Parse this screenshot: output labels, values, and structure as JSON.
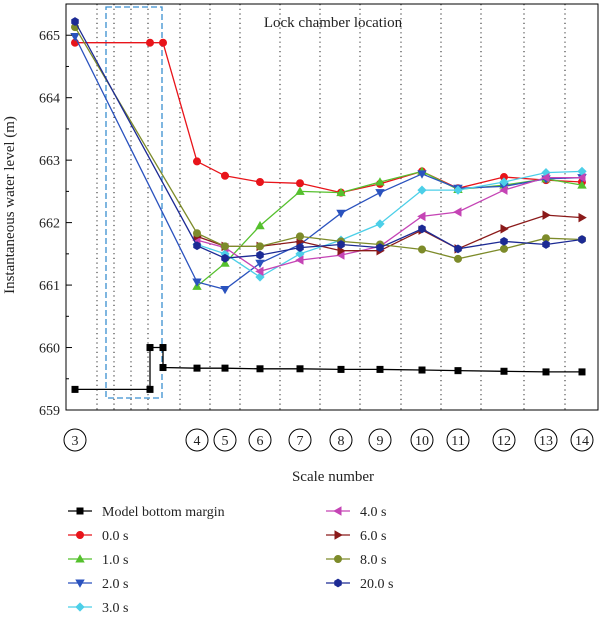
{
  "chart_data": {
    "type": "line",
    "annotation": "Lock chamber location",
    "xlabel": "Scale number",
    "ylabel": "Instantaneous water level (m)",
    "ylim": [
      659,
      665.5
    ],
    "yticks": [
      659,
      660,
      661,
      662,
      663,
      664,
      665
    ],
    "grid": "vertical dotted",
    "legend_position": "bottom",
    "scale_labels": [
      "3",
      "4",
      "5",
      "6",
      "7",
      "8",
      "9",
      "10",
      "11",
      "12",
      "13",
      "14"
    ],
    "series": [
      {
        "name": "Model bottom margin",
        "color": "#000000",
        "marker": "square",
        "points": [
          [
            3,
            659.33
          ],
          [
            3.75,
            659.33
          ],
          [
            3.75,
            660.0
          ],
          [
            3.88,
            660.0
          ],
          [
            3.88,
            659.68
          ],
          [
            4,
            659.67
          ],
          [
            5,
            659.67
          ],
          [
            6,
            659.66
          ],
          [
            7,
            659.66
          ],
          [
            8,
            659.65
          ],
          [
            9,
            659.65
          ],
          [
            10,
            659.64
          ],
          [
            11,
            659.63
          ],
          [
            12,
            659.62
          ],
          [
            13,
            659.61
          ],
          [
            14,
            659.61
          ]
        ]
      },
      {
        "name": "0.0 s",
        "color": "#e8141a",
        "marker": "circle",
        "points": [
          [
            3,
            664.88
          ],
          [
            3.75,
            664.88
          ],
          [
            3.88,
            664.88
          ],
          [
            4,
            662.98
          ],
          [
            5,
            662.75
          ],
          [
            6,
            662.65
          ],
          [
            7,
            662.63
          ],
          [
            8,
            662.48
          ],
          [
            9,
            662.62
          ],
          [
            10,
            662.82
          ],
          [
            11,
            662.55
          ],
          [
            12,
            662.73
          ],
          [
            13,
            662.68
          ],
          [
            14,
            662.65
          ]
        ]
      },
      {
        "name": "1.0 s",
        "color": "#55c02d",
        "marker": "triangle-up",
        "points": [
          [
            4,
            660.98
          ],
          [
            5,
            661.35
          ],
          [
            6,
            661.95
          ],
          [
            7,
            662.5
          ],
          [
            8,
            662.48
          ],
          [
            9,
            662.65
          ],
          [
            10,
            662.82
          ],
          [
            11,
            662.53
          ],
          [
            12,
            662.6
          ],
          [
            13,
            662.7
          ],
          [
            14,
            662.6
          ]
        ]
      },
      {
        "name": "2.0 s",
        "color": "#2a52be",
        "marker": "triangle-down",
        "points": [
          [
            3,
            664.98
          ],
          [
            4,
            661.05
          ],
          [
            5,
            660.93
          ],
          [
            6,
            661.35
          ],
          [
            7,
            661.65
          ],
          [
            8,
            662.15
          ],
          [
            9,
            662.48
          ],
          [
            10,
            662.78
          ],
          [
            11,
            662.55
          ],
          [
            12,
            662.58
          ],
          [
            13,
            662.7
          ],
          [
            14,
            662.72
          ]
        ]
      },
      {
        "name": "3.0 s",
        "color": "#4ccfe8",
        "marker": "diamond",
        "points": [
          [
            4,
            661.65
          ],
          [
            5,
            661.5
          ],
          [
            6,
            661.13
          ],
          [
            7,
            661.5
          ],
          [
            8,
            661.72
          ],
          [
            9,
            661.98
          ],
          [
            10,
            662.52
          ],
          [
            11,
            662.52
          ],
          [
            12,
            662.65
          ],
          [
            13,
            662.8
          ],
          [
            14,
            662.82
          ]
        ]
      },
      {
        "name": "4.0 s",
        "color": "#c544b5",
        "marker": "triangle-left",
        "points": [
          [
            4,
            661.72
          ],
          [
            5,
            661.6
          ],
          [
            6,
            661.22
          ],
          [
            7,
            661.4
          ],
          [
            8,
            661.48
          ],
          [
            9,
            661.62
          ],
          [
            10,
            662.1
          ],
          [
            11,
            662.17
          ],
          [
            12,
            662.52
          ],
          [
            13,
            662.72
          ],
          [
            14,
            662.72
          ]
        ]
      },
      {
        "name": "6.0 s",
        "color": "#8b1a1a",
        "marker": "triangle-right",
        "points": [
          [
            4,
            661.78
          ],
          [
            5,
            661.62
          ],
          [
            6,
            661.62
          ],
          [
            7,
            661.7
          ],
          [
            8,
            661.55
          ],
          [
            9,
            661.55
          ],
          [
            10,
            661.88
          ],
          [
            11,
            661.58
          ],
          [
            12,
            661.9
          ],
          [
            13,
            662.12
          ],
          [
            14,
            662.08
          ]
        ]
      },
      {
        "name": "8.0 s",
        "color": "#7d8b2a",
        "marker": "circle",
        "points": [
          [
            3,
            665.13
          ],
          [
            4,
            661.83
          ],
          [
            5,
            661.62
          ],
          [
            6,
            661.62
          ],
          [
            7,
            661.78
          ],
          [
            8,
            661.7
          ],
          [
            9,
            661.65
          ],
          [
            10,
            661.57
          ],
          [
            11,
            661.42
          ],
          [
            12,
            661.58
          ],
          [
            13,
            661.75
          ],
          [
            14,
            661.73
          ]
        ]
      },
      {
        "name": "20.0 s",
        "color": "#1c2a94",
        "marker": "hexagon",
        "points": [
          [
            3,
            665.22
          ],
          [
            4,
            661.63
          ],
          [
            5,
            661.43
          ],
          [
            6,
            661.48
          ],
          [
            7,
            661.6
          ],
          [
            8,
            661.65
          ],
          [
            9,
            661.6
          ],
          [
            10,
            661.9
          ],
          [
            11,
            661.58
          ],
          [
            12,
            661.7
          ],
          [
            13,
            661.65
          ],
          [
            14,
            661.73
          ]
        ]
      }
    ]
  }
}
